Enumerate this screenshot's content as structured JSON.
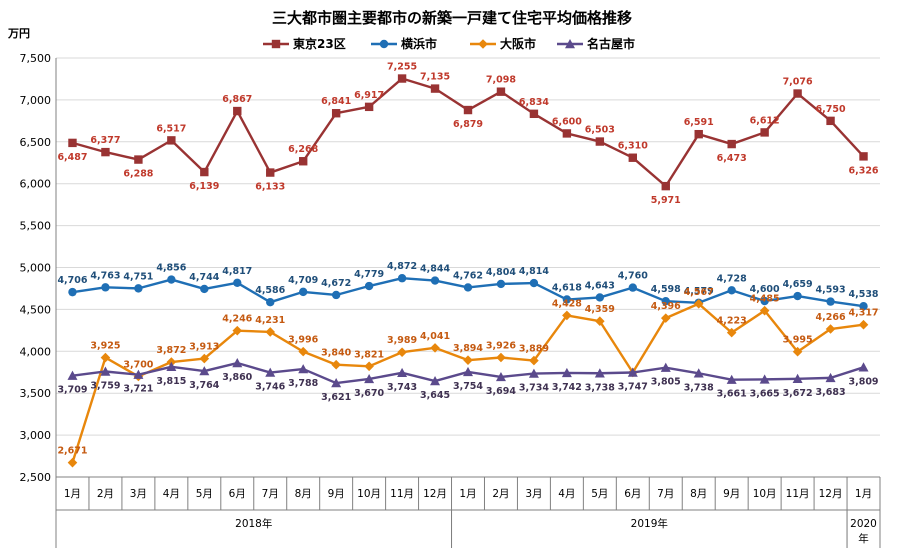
{
  "chart_data": {
    "type": "line",
    "title": "三大都市圏主要都市の新築一戸建て住宅平均価格推移",
    "ylabel": "万円",
    "ylim": [
      2500,
      7500
    ],
    "yticks": [
      "2,500",
      "3,000",
      "3,500",
      "4,000",
      "4,500",
      "5,000",
      "5,500",
      "6,000",
      "6,500",
      "7,000",
      "7,500"
    ],
    "ytick_values": [
      2500,
      3000,
      3500,
      4000,
      4500,
      5000,
      5500,
      6000,
      6500,
      7000,
      7500
    ],
    "categories": [
      "1月",
      "2月",
      "3月",
      "4月",
      "5月",
      "6月",
      "7月",
      "8月",
      "9月",
      "10月",
      "11月",
      "12月",
      "1月",
      "2月",
      "3月",
      "4月",
      "5月",
      "6月",
      "7月",
      "8月",
      "9月",
      "10月",
      "11月",
      "12月",
      "1月"
    ],
    "year_groups": [
      {
        "label": "2018年",
        "start": 0,
        "end": 11
      },
      {
        "label": "2019年",
        "start": 12,
        "end": 23
      },
      {
        "label": "2020年",
        "start": 24,
        "end": 24
      }
    ],
    "grid": true,
    "legend_position": "top",
    "series": [
      {
        "name": "東京23区",
        "color": "#993333",
        "label_color": "#c0392b",
        "marker": "square",
        "values": [
          6487,
          6377,
          6288,
          6517,
          6139,
          6867,
          6133,
          6268,
          6841,
          6917,
          7255,
          7135,
          6879,
          7098,
          6834,
          6600,
          6503,
          6310,
          5971,
          6591,
          6473,
          6612,
          7076,
          6750,
          6326
        ],
        "labels": [
          "6,487",
          "6,377",
          "6,288",
          "6,517",
          "6,139",
          "6,867",
          "6,133",
          "6,268",
          "6,841",
          "6,917",
          "7,255",
          "7,135",
          "6,879",
          "7,098",
          "6,834",
          "6,600",
          "6,503",
          "6,310",
          "5,971",
          "6,591",
          "6,473",
          "6,612",
          "7,076",
          "6,750",
          "6,326"
        ]
      },
      {
        "name": "横浜市",
        "color": "#1f6fb5",
        "label_color": "#1f4e79",
        "marker": "circle",
        "values": [
          4706,
          4763,
          4751,
          4856,
          4744,
          4817,
          4586,
          4709,
          4672,
          4779,
          4872,
          4844,
          4762,
          4804,
          4814,
          4618,
          4643,
          4760,
          4598,
          4579,
          4728,
          4600,
          4659,
          4593,
          4538
        ],
        "labels": [
          "4,706",
          "4,763",
          "4,751",
          "4,856",
          "4,744",
          "4,817",
          "4,586",
          "4,709",
          "4,672",
          "4,779",
          "4,872",
          "4,844",
          "4,762",
          "4,804",
          "4,814",
          "4,618",
          "4,643",
          "4,760",
          "4,598",
          "4,579",
          "4,728",
          "4,600",
          "4,659",
          "4,593",
          "4,538"
        ]
      },
      {
        "name": "大阪市",
        "color": "#e8870c",
        "label_color": "#c55a11",
        "marker": "diamond",
        "values": [
          2671,
          3925,
          3700,
          3872,
          3913,
          4246,
          4231,
          3996,
          3840,
          3821,
          3989,
          4041,
          3894,
          3926,
          3889,
          4428,
          4359,
          3747,
          4396,
          4567,
          4223,
          4485,
          3995,
          4266,
          4317
        ],
        "labels": [
          "2,671",
          "3,925",
          "3,700",
          "3,872",
          "3,913",
          "4,246",
          "4,231",
          "3,996",
          "3,840",
          "3,821",
          "3,989",
          "4,041",
          "3,894",
          "3,926",
          "3,889",
          "4,428",
          "4,359",
          "",
          "4,396",
          "4,567",
          "4,223",
          "4,485",
          "3,995",
          "4,266",
          "4,317"
        ]
      },
      {
        "name": "名古屋市",
        "color": "#5b4a8c",
        "label_color": "#3f3151",
        "marker": "triangle",
        "values": [
          3709,
          3759,
          3721,
          3815,
          3764,
          3860,
          3746,
          3788,
          3621,
          3670,
          3743,
          3645,
          3754,
          3694,
          3734,
          3742,
          3738,
          3747,
          3805,
          3738,
          3661,
          3665,
          3672,
          3683,
          3809
        ],
        "labels": [
          "3,709",
          "3,759",
          "3,721",
          "3,815",
          "3,764",
          "3,860",
          "3,746",
          "3,788",
          "3,621",
          "3,670",
          "3,743",
          "3,645",
          "3,754",
          "3,694",
          "3,734",
          "3,742",
          "3,738",
          "3,747",
          "3,805",
          "3,738",
          "3,661",
          "3,665",
          "3,672",
          "3,683",
          "3,809"
        ]
      }
    ]
  }
}
